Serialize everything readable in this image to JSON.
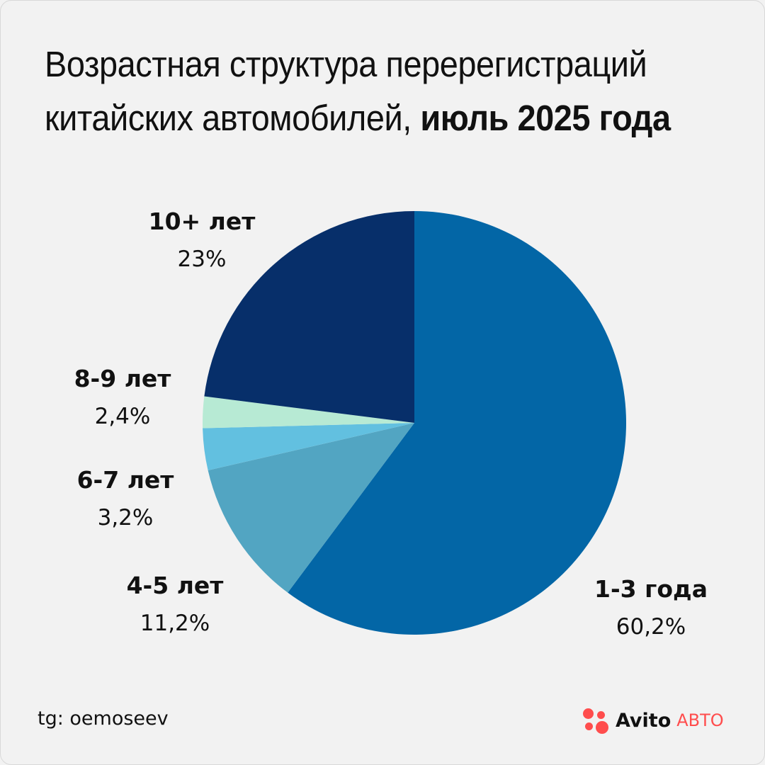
{
  "title": {
    "line1": "Возрастная структура перерегистраций",
    "line2_regular": "китайских автомобилей,",
    "line2_bold": "июль 2025 года"
  },
  "chart_data": {
    "type": "pie",
    "title": "Возрастная структура перерегистраций китайских автомобилей, июль 2025 года",
    "start": "12 o'clock",
    "direction": "clockwise",
    "slices": [
      {
        "label": "1-3 года",
        "value": 60.2,
        "display": "60,2%",
        "color": "#0366a6"
      },
      {
        "label": "4-5 лет",
        "value": 11.2,
        "display": "11,2%",
        "color": "#52a5c2"
      },
      {
        "label": "6-7 лет",
        "value": 3.2,
        "display": "3,2%",
        "color": "#62c0e0"
      },
      {
        "label": "8-9 лет",
        "value": 2.4,
        "display": "2,4%",
        "color": "#b7ead4"
      },
      {
        "label": "10+ лет",
        "value": 23,
        "display": "23%",
        "color": "#072f6a"
      }
    ]
  },
  "footer": {
    "credit": "tg: oemoseev",
    "brand_name": "Avito",
    "brand_sub": "АВТО",
    "brand_color": "#ff4d4d"
  }
}
